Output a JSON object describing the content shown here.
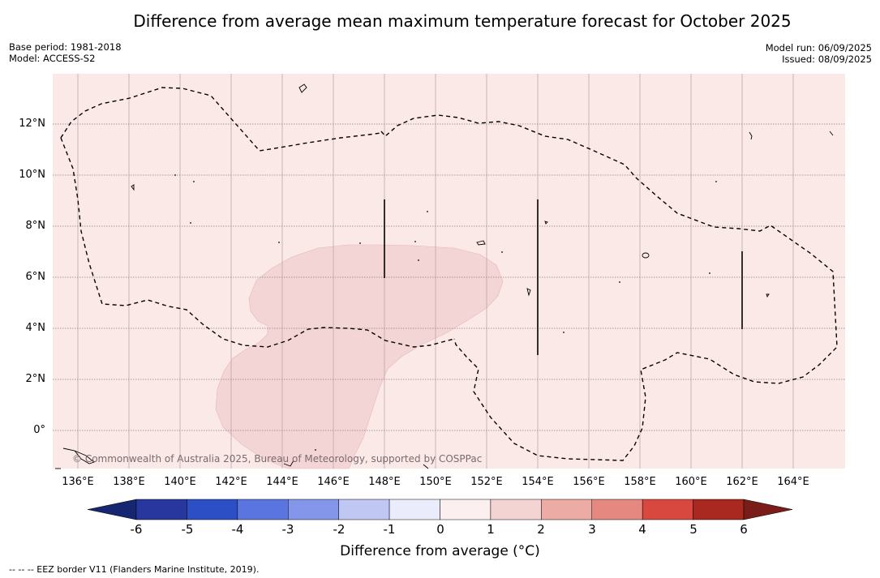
{
  "title": "Difference from average mean maximum temperature forecast for October 2025",
  "meta": {
    "base_period": "Base period: 1981-2018",
    "model": "Model: ACCESS-S2",
    "model_run": "Model run: 06/09/2025",
    "issued": "Issued: 08/09/2025"
  },
  "axes": {
    "lat_labels": [
      "12°N",
      "10°N",
      "8°N",
      "6°N",
      "4°N",
      "2°N",
      "0°"
    ],
    "lon_labels": [
      "136°E",
      "138°E",
      "140°E",
      "142°E",
      "144°E",
      "146°E",
      "148°E",
      "150°E",
      "152°E",
      "154°E",
      "156°E",
      "158°E",
      "160°E",
      "162°E",
      "164°E"
    ]
  },
  "copyright": "© Commonwealth of Australia 2025, Bureau of Meteorology, supported by COSPPac",
  "colorbar": {
    "labels": [
      "-6",
      "-5",
      "-4",
      "-3",
      "-2",
      "-1",
      "0",
      "1",
      "2",
      "3",
      "4",
      "5",
      "6"
    ],
    "colors": [
      "#27379e",
      "#2c4fc5",
      "#5a74e0",
      "#8496ea",
      "#c0c7f3",
      "#eaecfb",
      "#fcefef",
      "#f4d3d3",
      "#ecaba5",
      "#e58880",
      "#d8483f",
      "#a9281f"
    ],
    "low_extend_color": "#172670",
    "high_extend_color": "#7a1d18",
    "title": "Difference from average (°C)"
  },
  "footer": "-- -- -- EEZ border V11 (Flanders Marine Institute, 2019).",
  "map_colors": {
    "background": "#fbe9e8",
    "anomaly_1_2": "#f4d5d5"
  }
}
